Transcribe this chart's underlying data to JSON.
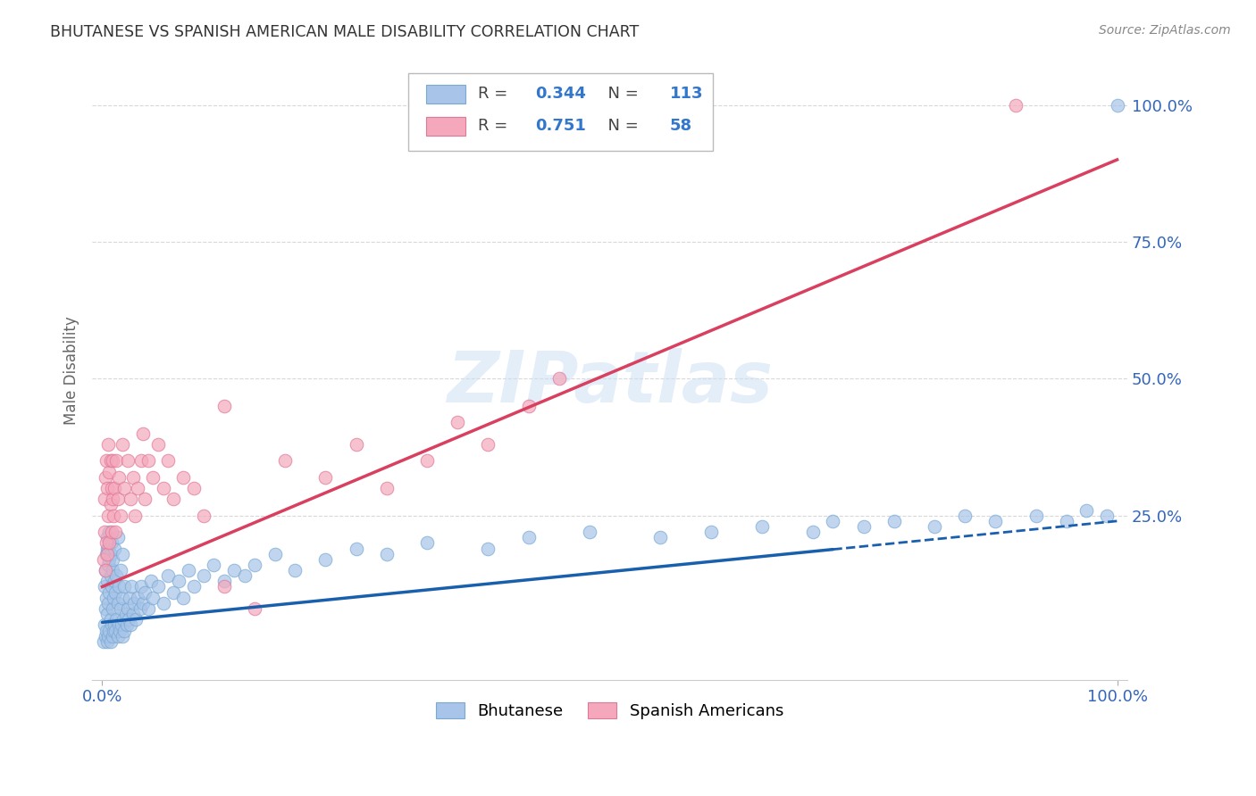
{
  "title": "BHUTANESE VS SPANISH AMERICAN MALE DISABILITY CORRELATION CHART",
  "source": "Source: ZipAtlas.com",
  "ylabel": "Male Disability",
  "bhutanese_color": "#a8c4e8",
  "bhutanese_edge": "#7aaad4",
  "spanish_color": "#f5a8bc",
  "spanish_edge": "#e07898",
  "line_blue": "#1a5fad",
  "line_pink": "#d94060",
  "legend_R_color": "#3377cc",
  "bhutanese_R": 0.344,
  "bhutanese_N": 113,
  "spanish_R": 0.751,
  "spanish_N": 58,
  "grid_color": "#d8d8d8",
  "background_color": "#ffffff",
  "ytick_vals_right": [
    0.25,
    0.5,
    0.75,
    1.0
  ],
  "watermark": "ZIPatlas",
  "bhutanese_scatter_x": [
    0.001,
    0.002,
    0.002,
    0.003,
    0.003,
    0.003,
    0.004,
    0.004,
    0.004,
    0.005,
    0.005,
    0.005,
    0.005,
    0.006,
    0.006,
    0.006,
    0.007,
    0.007,
    0.007,
    0.008,
    0.008,
    0.008,
    0.009,
    0.009,
    0.01,
    0.01,
    0.01,
    0.011,
    0.011,
    0.012,
    0.012,
    0.013,
    0.013,
    0.014,
    0.014,
    0.015,
    0.015,
    0.016,
    0.016,
    0.017,
    0.018,
    0.018,
    0.019,
    0.02,
    0.02,
    0.021,
    0.022,
    0.022,
    0.023,
    0.024,
    0.025,
    0.026,
    0.027,
    0.028,
    0.029,
    0.03,
    0.031,
    0.033,
    0.035,
    0.037,
    0.038,
    0.04,
    0.042,
    0.045,
    0.048,
    0.05,
    0.055,
    0.06,
    0.065,
    0.07,
    0.075,
    0.08,
    0.085,
    0.09,
    0.1,
    0.11,
    0.12,
    0.13,
    0.14,
    0.15,
    0.17,
    0.19,
    0.22,
    0.25,
    0.28,
    0.32,
    0.38,
    0.42,
    0.48,
    0.55,
    0.6,
    0.65,
    0.7,
    0.72,
    0.75,
    0.78,
    0.82,
    0.85,
    0.88,
    0.92,
    0.95,
    0.97,
    0.99,
    1.0,
    0.005,
    0.006,
    0.007,
    0.008,
    0.009,
    0.01,
    0.012,
    0.015,
    0.02
  ],
  "bhutanese_scatter_y": [
    0.02,
    0.05,
    0.12,
    0.03,
    0.08,
    0.15,
    0.04,
    0.1,
    0.18,
    0.02,
    0.07,
    0.13,
    0.19,
    0.03,
    0.09,
    0.16,
    0.04,
    0.11,
    0.17,
    0.02,
    0.06,
    0.14,
    0.05,
    0.12,
    0.03,
    0.08,
    0.15,
    0.04,
    0.1,
    0.05,
    0.13,
    0.04,
    0.11,
    0.06,
    0.14,
    0.03,
    0.09,
    0.05,
    0.12,
    0.04,
    0.08,
    0.15,
    0.05,
    0.03,
    0.1,
    0.06,
    0.04,
    0.12,
    0.07,
    0.05,
    0.08,
    0.06,
    0.1,
    0.05,
    0.12,
    0.07,
    0.09,
    0.06,
    0.1,
    0.08,
    0.12,
    0.09,
    0.11,
    0.08,
    0.13,
    0.1,
    0.12,
    0.09,
    0.14,
    0.11,
    0.13,
    0.1,
    0.15,
    0.12,
    0.14,
    0.16,
    0.13,
    0.15,
    0.14,
    0.16,
    0.18,
    0.15,
    0.17,
    0.19,
    0.18,
    0.2,
    0.19,
    0.21,
    0.22,
    0.21,
    0.22,
    0.23,
    0.22,
    0.24,
    0.23,
    0.24,
    0.23,
    0.25,
    0.24,
    0.25,
    0.24,
    0.26,
    0.25,
    1.0,
    0.21,
    0.19,
    0.22,
    0.18,
    0.2,
    0.17,
    0.19,
    0.21,
    0.18
  ],
  "spanish_scatter_x": [
    0.001,
    0.002,
    0.002,
    0.003,
    0.003,
    0.004,
    0.004,
    0.005,
    0.005,
    0.006,
    0.006,
    0.007,
    0.007,
    0.008,
    0.008,
    0.009,
    0.009,
    0.01,
    0.01,
    0.011,
    0.012,
    0.013,
    0.014,
    0.015,
    0.016,
    0.018,
    0.02,
    0.022,
    0.025,
    0.028,
    0.03,
    0.032,
    0.035,
    0.038,
    0.04,
    0.042,
    0.045,
    0.05,
    0.055,
    0.06,
    0.065,
    0.07,
    0.08,
    0.09,
    0.1,
    0.12,
    0.15,
    0.18,
    0.22,
    0.25,
    0.28,
    0.32,
    0.35,
    0.38,
    0.42,
    0.45,
    0.9,
    0.12
  ],
  "spanish_scatter_y": [
    0.17,
    0.22,
    0.28,
    0.15,
    0.32,
    0.2,
    0.35,
    0.18,
    0.3,
    0.25,
    0.38,
    0.2,
    0.33,
    0.27,
    0.35,
    0.22,
    0.3,
    0.28,
    0.35,
    0.25,
    0.3,
    0.22,
    0.35,
    0.28,
    0.32,
    0.25,
    0.38,
    0.3,
    0.35,
    0.28,
    0.32,
    0.25,
    0.3,
    0.35,
    0.4,
    0.28,
    0.35,
    0.32,
    0.38,
    0.3,
    0.35,
    0.28,
    0.32,
    0.3,
    0.25,
    0.12,
    0.08,
    0.35,
    0.32,
    0.38,
    0.3,
    0.35,
    0.42,
    0.38,
    0.45,
    0.5,
    1.0,
    0.45
  ]
}
